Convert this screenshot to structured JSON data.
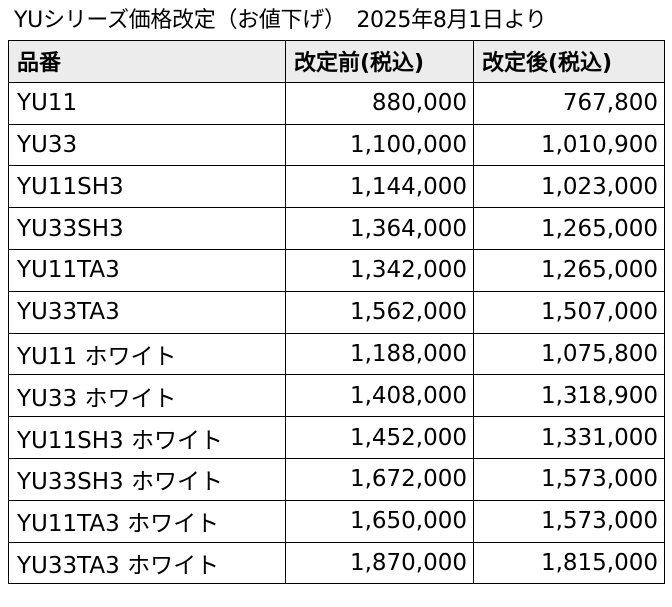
{
  "title": "YUシリーズ価格改定（お値下げ）　2025年8月1日より",
  "table": {
    "headers": [
      "品番",
      "改定前(税込)",
      "改定後(税込)"
    ],
    "rows": [
      {
        "model": "YU11",
        "before": "880,000",
        "after": "767,800"
      },
      {
        "model": "YU33",
        "before": "1,100,000",
        "after": "1,010,900"
      },
      {
        "model": "YU11SH3",
        "before": "1,144,000",
        "after": "1,023,000"
      },
      {
        "model": "YU33SH3",
        "before": "1,364,000",
        "after": "1,265,000"
      },
      {
        "model": "YU11TA3",
        "before": "1,342,000",
        "after": "1,265,000"
      },
      {
        "model": "YU33TA3",
        "before": "1,562,000",
        "after": "1,507,000"
      },
      {
        "model": "YU11 ホワイト",
        "before": "1,188,000",
        "after": "1,075,800"
      },
      {
        "model": "YU33 ホワイト",
        "before": "1,408,000",
        "after": "1,318,900"
      },
      {
        "model": "YU11SH3 ホワイト",
        "before": "1,452,000",
        "after": "1,331,000"
      },
      {
        "model": "YU33SH3 ホワイト",
        "before": "1,672,000",
        "after": "1,573,000"
      },
      {
        "model": "YU11TA3 ホワイト",
        "before": "1,650,000",
        "after": "1,573,000"
      },
      {
        "model": "YU33TA3 ホワイト",
        "before": "1,870,000",
        "after": "1,815,000"
      }
    ]
  }
}
